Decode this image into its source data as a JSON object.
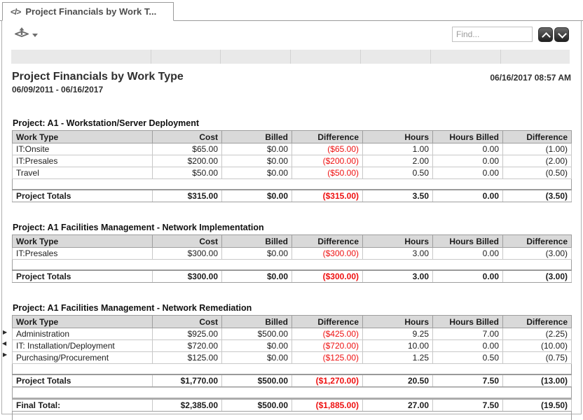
{
  "tab": {
    "icon_glyph": "</>",
    "title": "Project Financials by Work T..."
  },
  "toolbar": {
    "find_placeholder": "Find..."
  },
  "report": {
    "title": "Project Financials by Work Type",
    "date_range": "06/09/2011 - 06/16/2017",
    "generated": "06/16/2017 08:57 AM",
    "columns": [
      "Work Type",
      "Cost",
      "Billed",
      "Difference",
      "Hours",
      "Hours Billed",
      "Difference"
    ],
    "sections": [
      {
        "title": "Project: A1 - Workstation/Server Deployment",
        "rows": [
          [
            "IT:Onsite",
            "$65.00",
            "$0.00",
            "($65.00)",
            "1.00",
            "0.00",
            "(1.00)"
          ],
          [
            "IT:Presales",
            "$200.00",
            "$0.00",
            "($200.00)",
            "2.00",
            "0.00",
            "(2.00)"
          ],
          [
            "Travel",
            "$50.00",
            "$0.00",
            "($50.00)",
            "0.50",
            "0.00",
            "(0.50)"
          ]
        ],
        "totals": {
          "label": "Project Totals",
          "values": [
            "$315.00",
            "$0.00",
            "($315.00)",
            "3.50",
            "0.00",
            "(3.50)"
          ]
        }
      },
      {
        "title": "Project: A1 Facilities Management - Network Implementation",
        "rows": [
          [
            "IT:Presales",
            "$300.00",
            "$0.00",
            "($300.00)",
            "3.00",
            "0.00",
            "(3.00)"
          ]
        ],
        "totals": {
          "label": "Project Totals",
          "values": [
            "$300.00",
            "$0.00",
            "($300.00)",
            "3.00",
            "0.00",
            "(3.00)"
          ]
        }
      },
      {
        "title": "Project: A1 Facilities Management - Network Remediation",
        "rows": [
          [
            "Administration",
            "$925.00",
            "$500.00",
            "($425.00)",
            "9.25",
            "7.00",
            "(2.25)"
          ],
          [
            "IT: Installation/Deployment",
            "$720.00",
            "$0.00",
            "($720.00)",
            "10.00",
            "0.00",
            "(10.00)"
          ],
          [
            "Purchasing/Procurement",
            "$125.00",
            "$0.00",
            "($125.00)",
            "1.25",
            "0.50",
            "(0.75)"
          ]
        ],
        "totals": {
          "label": "Project Totals",
          "values": [
            "$1,770.00",
            "$500.00",
            "($1,270.00)",
            "20.50",
            "7.50",
            "(13.00)"
          ]
        }
      }
    ],
    "final_total": {
      "label": "Final Total:",
      "values": [
        "$2,385.00",
        "$500.00",
        "($1,885.00)",
        "27.00",
        "7.50",
        "(19.50)"
      ]
    }
  },
  "gutter_markers": [
    "▶",
    "◀",
    "▶"
  ],
  "colors": {
    "negative": "#ee1111",
    "header_bg": "#d9d9d9",
    "strip_bg": "#e9e9e9",
    "frame_border": "#b0b0b0"
  }
}
